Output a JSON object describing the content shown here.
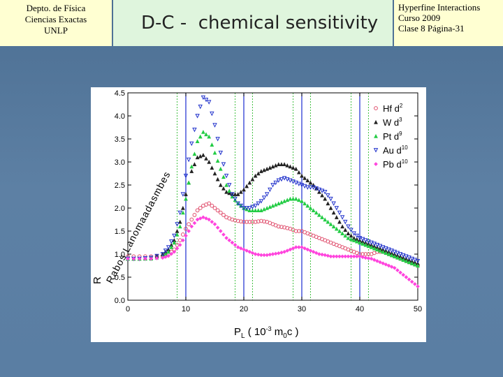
{
  "header": {
    "left_lines": [
      "Depto. de Física",
      "Ciencias Exactas",
      "UNLP"
    ],
    "title": "D-C -  chemical sensitivity",
    "right_lines": [
      "Hyperfine Interactions",
      "Curso 2009",
      "Clase 8  Página-31"
    ]
  },
  "colors": {
    "header_bg": "#ffffd2",
    "title_bg": "#dff5dd",
    "slide_bg": "#5a7ea3",
    "Hf": "#e0506e",
    "W": "#222222",
    "Pt": "#22cc44",
    "Au": "#2233cc",
    "Pb": "#ff44dd",
    "vline_blue": "#1a2bd0",
    "vline_green": "#3fbf3f"
  },
  "chart_data": {
    "type": "scatter",
    "xlabel": "P",
    "xlabel_sub": "L",
    "xlabel_rest": " ( 10",
    "xlabel_sup": "-3",
    "xlabel_tail": " m",
    "xlabel_sub2": "0",
    "xlabel_end": "c )",
    "ylabel_text": "R",
    "ylabel_garbled": "Rabos Lanomaadasmbes",
    "xlim": [
      0,
      50
    ],
    "ylim": [
      0,
      4.5
    ],
    "x_ticks": [
      "0",
      "10",
      "20",
      "30",
      "40",
      "50"
    ],
    "y_ticks": [
      "0.0",
      "0.5",
      "1.0",
      "1.5",
      "2.0",
      "2.5",
      "3.0",
      "3.5",
      "4.0",
      "4.5"
    ],
    "vlines_blue": [
      10,
      20,
      30,
      40
    ],
    "vlines_green": [
      8.5,
      18.5,
      21.5,
      28.5,
      31.5,
      38.5,
      41.5
    ],
    "legend_position": "top-right",
    "series": [
      {
        "name": "Hf d",
        "sup": "2",
        "marker": "circle",
        "points": [
          [
            0,
            0.95
          ],
          [
            2,
            0.95
          ],
          [
            4,
            0.95
          ],
          [
            6,
            0.96
          ],
          [
            7,
            1.0
          ],
          [
            8,
            1.1
          ],
          [
            9,
            1.3
          ],
          [
            10,
            1.55
          ],
          [
            11,
            1.75
          ],
          [
            12,
            1.95
          ],
          [
            13,
            2.05
          ],
          [
            14,
            2.1
          ],
          [
            15,
            2.0
          ],
          [
            16,
            1.9
          ],
          [
            17,
            1.8
          ],
          [
            18,
            1.75
          ],
          [
            19,
            1.72
          ],
          [
            20,
            1.7
          ],
          [
            21,
            1.7
          ],
          [
            22,
            1.7
          ],
          [
            23,
            1.72
          ],
          [
            24,
            1.7
          ],
          [
            25,
            1.65
          ],
          [
            26,
            1.6
          ],
          [
            27,
            1.58
          ],
          [
            28,
            1.55
          ],
          [
            29,
            1.5
          ],
          [
            30,
            1.5
          ],
          [
            31,
            1.45
          ],
          [
            32,
            1.4
          ],
          [
            33,
            1.35
          ],
          [
            34,
            1.3
          ],
          [
            35,
            1.25
          ],
          [
            36,
            1.2
          ],
          [
            37,
            1.15
          ],
          [
            38,
            1.1
          ],
          [
            39,
            1.05
          ],
          [
            40,
            1.0
          ],
          [
            41,
            1.0
          ],
          [
            42,
            1.0
          ],
          [
            43,
            1.05
          ],
          [
            44,
            1.05
          ],
          [
            45,
            1.0
          ],
          [
            46,
            0.95
          ],
          [
            47,
            0.9
          ],
          [
            48,
            0.85
          ],
          [
            49,
            0.8
          ],
          [
            50,
            0.75
          ]
        ]
      },
      {
        "name": "W d",
        "sup": "3",
        "marker": "triangle",
        "points": [
          [
            0,
            0.9
          ],
          [
            2,
            0.9
          ],
          [
            4,
            0.92
          ],
          [
            6,
            1.0
          ],
          [
            7,
            1.1
          ],
          [
            8,
            1.3
          ],
          [
            9,
            1.7
          ],
          [
            10,
            2.3
          ],
          [
            11,
            2.8
          ],
          [
            12,
            3.1
          ],
          [
            13,
            3.15
          ],
          [
            14,
            3.0
          ],
          [
            15,
            2.75
          ],
          [
            16,
            2.5
          ],
          [
            17,
            2.35
          ],
          [
            18,
            2.3
          ],
          [
            19,
            2.3
          ],
          [
            20,
            2.4
          ],
          [
            21,
            2.55
          ],
          [
            22,
            2.7
          ],
          [
            23,
            2.8
          ],
          [
            24,
            2.85
          ],
          [
            25,
            2.9
          ],
          [
            26,
            2.95
          ],
          [
            27,
            2.95
          ],
          [
            28,
            2.9
          ],
          [
            29,
            2.85
          ],
          [
            30,
            2.7
          ],
          [
            31,
            2.6
          ],
          [
            32,
            2.5
          ],
          [
            33,
            2.35
          ],
          [
            34,
            2.2
          ],
          [
            35,
            2.0
          ],
          [
            36,
            1.8
          ],
          [
            37,
            1.6
          ],
          [
            38,
            1.45
          ],
          [
            39,
            1.35
          ],
          [
            40,
            1.3
          ],
          [
            41,
            1.25
          ],
          [
            42,
            1.2
          ],
          [
            43,
            1.15
          ],
          [
            44,
            1.1
          ],
          [
            45,
            1.05
          ],
          [
            46,
            1.0
          ],
          [
            47,
            0.95
          ],
          [
            48,
            0.9
          ],
          [
            49,
            0.85
          ],
          [
            50,
            0.8
          ]
        ]
      },
      {
        "name": "Pt d",
        "sup": "9",
        "marker": "triangle",
        "points": [
          [
            0,
            0.9
          ],
          [
            2,
            0.9
          ],
          [
            4,
            0.9
          ],
          [
            6,
            0.95
          ],
          [
            7,
            1.05
          ],
          [
            8,
            1.25
          ],
          [
            9,
            1.6
          ],
          [
            10,
            2.2
          ],
          [
            11,
            2.9
          ],
          [
            12,
            3.45
          ],
          [
            13,
            3.65
          ],
          [
            14,
            3.55
          ],
          [
            15,
            3.2
          ],
          [
            16,
            2.85
          ],
          [
            17,
            2.5
          ],
          [
            18,
            2.25
          ],
          [
            19,
            2.1
          ],
          [
            20,
            2.0
          ],
          [
            21,
            1.95
          ],
          [
            22,
            1.95
          ],
          [
            23,
            1.95
          ],
          [
            24,
            2.0
          ],
          [
            25,
            2.05
          ],
          [
            26,
            2.1
          ],
          [
            27,
            2.15
          ],
          [
            28,
            2.2
          ],
          [
            29,
            2.2
          ],
          [
            30,
            2.15
          ],
          [
            31,
            2.05
          ],
          [
            32,
            1.95
          ],
          [
            33,
            1.85
          ],
          [
            34,
            1.75
          ],
          [
            35,
            1.65
          ],
          [
            36,
            1.55
          ],
          [
            37,
            1.45
          ],
          [
            38,
            1.35
          ],
          [
            39,
            1.3
          ],
          [
            40,
            1.25
          ],
          [
            41,
            1.2
          ],
          [
            42,
            1.15
          ],
          [
            43,
            1.1
          ],
          [
            44,
            1.05
          ],
          [
            45,
            1.0
          ],
          [
            46,
            0.95
          ],
          [
            47,
            0.9
          ],
          [
            48,
            0.85
          ],
          [
            49,
            0.8
          ],
          [
            50,
            0.75
          ]
        ]
      },
      {
        "name": "Au d",
        "sup": "10",
        "marker": "down-triangle",
        "points": [
          [
            0,
            0.9
          ],
          [
            2,
            0.9
          ],
          [
            4,
            0.92
          ],
          [
            6,
            1.0
          ],
          [
            7,
            1.15
          ],
          [
            8,
            1.4
          ],
          [
            9,
            1.9
          ],
          [
            10,
            2.7
          ],
          [
            11,
            3.4
          ],
          [
            12,
            4.0
          ],
          [
            13,
            4.4
          ],
          [
            14,
            4.3
          ],
          [
            15,
            3.8
          ],
          [
            16,
            3.2
          ],
          [
            17,
            2.7
          ],
          [
            18,
            2.3
          ],
          [
            19,
            2.1
          ],
          [
            20,
            2.0
          ],
          [
            21,
            2.0
          ],
          [
            22,
            2.05
          ],
          [
            23,
            2.15
          ],
          [
            24,
            2.3
          ],
          [
            25,
            2.5
          ],
          [
            26,
            2.6
          ],
          [
            27,
            2.65
          ],
          [
            28,
            2.6
          ],
          [
            29,
            2.55
          ],
          [
            30,
            2.5
          ],
          [
            31,
            2.45
          ],
          [
            32,
            2.45
          ],
          [
            33,
            2.4
          ],
          [
            34,
            2.35
          ],
          [
            35,
            2.2
          ],
          [
            36,
            2.0
          ],
          [
            37,
            1.8
          ],
          [
            38,
            1.6
          ],
          [
            39,
            1.45
          ],
          [
            40,
            1.35
          ],
          [
            41,
            1.3
          ],
          [
            42,
            1.25
          ],
          [
            43,
            1.2
          ],
          [
            44,
            1.15
          ],
          [
            45,
            1.1
          ],
          [
            46,
            1.05
          ],
          [
            47,
            1.0
          ],
          [
            48,
            0.95
          ],
          [
            49,
            0.9
          ],
          [
            50,
            0.85
          ]
        ]
      },
      {
        "name": "Pb d",
        "sup": "10",
        "marker": "diamond",
        "points": [
          [
            0,
            0.9
          ],
          [
            2,
            0.9
          ],
          [
            4,
            0.9
          ],
          [
            6,
            0.92
          ],
          [
            7,
            0.96
          ],
          [
            8,
            1.05
          ],
          [
            9,
            1.2
          ],
          [
            10,
            1.4
          ],
          [
            11,
            1.6
          ],
          [
            12,
            1.75
          ],
          [
            13,
            1.8
          ],
          [
            14,
            1.75
          ],
          [
            15,
            1.65
          ],
          [
            16,
            1.5
          ],
          [
            17,
            1.35
          ],
          [
            18,
            1.25
          ],
          [
            19,
            1.15
          ],
          [
            20,
            1.1
          ],
          [
            21,
            1.05
          ],
          [
            22,
            1.0
          ],
          [
            23,
            0.98
          ],
          [
            24,
            0.98
          ],
          [
            25,
            1.0
          ],
          [
            26,
            1.02
          ],
          [
            27,
            1.05
          ],
          [
            28,
            1.1
          ],
          [
            29,
            1.15
          ],
          [
            30,
            1.15
          ],
          [
            31,
            1.1
          ],
          [
            32,
            1.05
          ],
          [
            33,
            1.0
          ],
          [
            34,
            0.98
          ],
          [
            35,
            0.95
          ],
          [
            36,
            0.95
          ],
          [
            37,
            0.95
          ],
          [
            38,
            0.95
          ],
          [
            39,
            0.95
          ],
          [
            40,
            0.95
          ],
          [
            41,
            0.92
          ],
          [
            42,
            0.9
          ],
          [
            43,
            0.85
          ],
          [
            44,
            0.8
          ],
          [
            45,
            0.75
          ],
          [
            46,
            0.7
          ],
          [
            47,
            0.6
          ],
          [
            48,
            0.5
          ],
          [
            49,
            0.4
          ],
          [
            50,
            0.3
          ]
        ]
      }
    ]
  }
}
